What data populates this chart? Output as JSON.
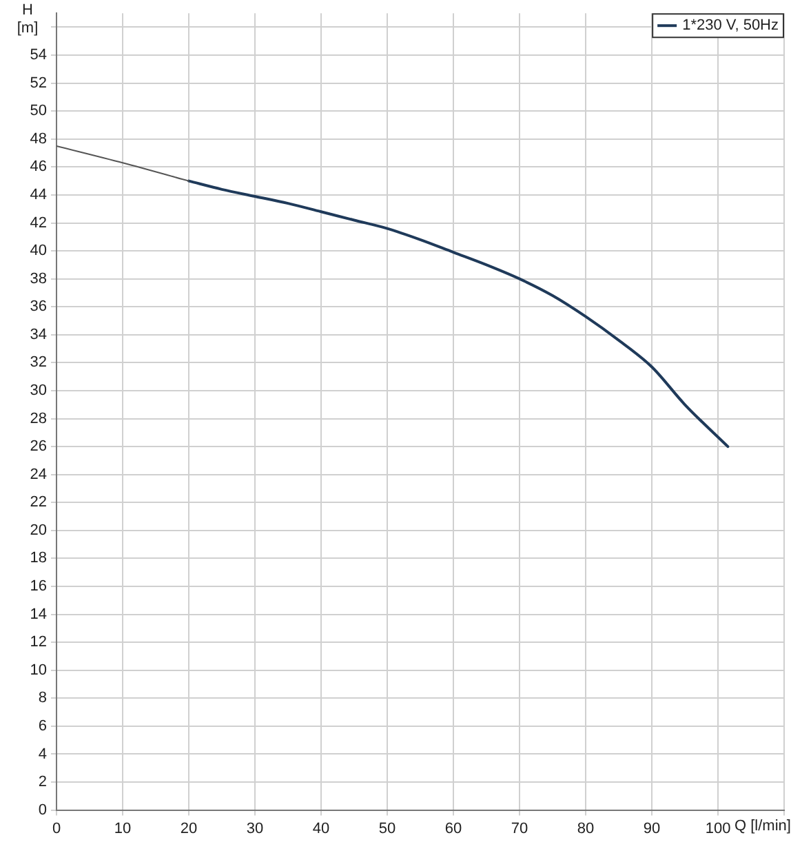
{
  "chart_data": {
    "type": "line",
    "xlabel": "Q [l/min]",
    "ylabel": "H [m]",
    "legend": "top right",
    "grid": true,
    "marker": "none",
    "line_style": "solid",
    "xlim": [
      0,
      110
    ],
    "xticks": [
      0,
      10,
      20,
      30,
      40,
      50,
      60,
      70,
      80,
      90,
      100,
      {
        "value": 110,
        "label": null
      }
    ],
    "ylim": [
      0,
      57
    ],
    "yticks": [
      0,
      2,
      4,
      6,
      8,
      10,
      12,
      14,
      16,
      18,
      20,
      22,
      24,
      26,
      28,
      30,
      32,
      34,
      36,
      38,
      40,
      42,
      44,
      46,
      48,
      50,
      52,
      54,
      {
        "value": 56,
        "label": null
      }
    ],
    "series": [
      {
        "color": "#555555",
        "x": [
          0,
          10,
          20
        ],
        "values": [
          47.5,
          46.3,
          45
        ]
      },
      {
        "name": "1*230 V, 50Hz",
        "color": "#1f3a5a",
        "x": [
          20,
          25,
          30,
          35,
          40,
          45,
          50,
          55,
          60,
          65,
          70,
          75,
          80,
          85,
          90,
          95,
          101.5
        ],
        "values": [
          45,
          44.4,
          43.9,
          43.4,
          42.8,
          42.2,
          41.6,
          40.8,
          39.9,
          39,
          38,
          36.8,
          35.3,
          33.6,
          31.7,
          29,
          26
        ]
      }
    ]
  }
}
